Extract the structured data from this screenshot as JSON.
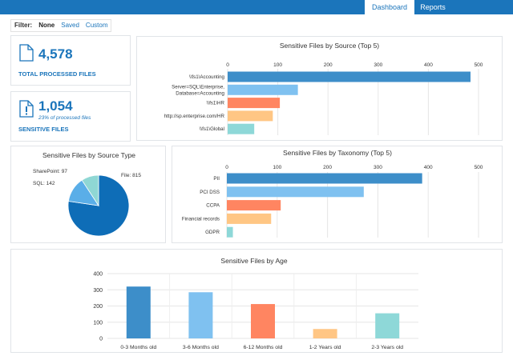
{
  "nav": {
    "tabs": [
      {
        "label": "Dashboard",
        "active": true
      },
      {
        "label": "Reports",
        "active": false
      }
    ]
  },
  "filter": {
    "label": "Filter:",
    "options": [
      {
        "label": "None",
        "selected": true
      },
      {
        "label": "Saved",
        "selected": false
      },
      {
        "label": "Custom",
        "selected": false
      }
    ]
  },
  "kpis": {
    "processed": {
      "value": "4,578",
      "label": "TOTAL PROCESSED FILES",
      "icon": "document-icon"
    },
    "sensitive": {
      "value": "1,054",
      "sub": "23% of processed files",
      "label": "SENSITIVE FILES",
      "icon": "document-alert-icon"
    }
  },
  "colors": {
    "accent": "#1b75bb",
    "bar1": "#3d8ec9",
    "bar2": "#7fc1f0",
    "bar3": "#ff8561",
    "bar4": "#ffc684",
    "bar5": "#8ed8d8",
    "pie_file": "#0e6db7",
    "pie_sql": "#5aaee8",
    "pie_sharepoint": "#8fd7d4"
  },
  "chart_data": [
    {
      "id": "source",
      "type": "bar",
      "orientation": "horizontal",
      "title": "Sensitive Files by Source  (Top 5)",
      "categories": [
        "\\\\fs1\\Accounting",
        "Server=SQL\\Enterprise,\nDatabase=Accounting",
        "\\\\fs1\\HR",
        "http://sp.enterprise.com/HR",
        "\\\\fs1\\Global"
      ],
      "values": [
        484,
        140,
        104,
        90,
        53
      ],
      "xlim": [
        0,
        500
      ],
      "ticks": [
        0,
        100,
        200,
        300,
        400,
        500
      ]
    },
    {
      "id": "type",
      "type": "pie",
      "title": "Sensitive Files by Source Type",
      "labels": [
        "File: 815",
        "SQL: 142",
        "SharePoint: 97"
      ],
      "values": [
        815,
        142,
        97
      ]
    },
    {
      "id": "taxonomy",
      "type": "bar",
      "orientation": "horizontal",
      "title": "Sensitive Files by Taxonomy  (Top 5)",
      "categories": [
        "PII",
        "PCI DSS",
        "CCPA",
        "Financial records",
        "GDPR"
      ],
      "values": [
        388,
        272,
        107,
        88,
        12
      ],
      "xlim": [
        0,
        500
      ],
      "ticks": [
        0,
        100,
        200,
        300,
        400,
        500
      ]
    },
    {
      "id": "age",
      "type": "bar",
      "orientation": "vertical",
      "title": "Sensitive Files by Age",
      "categories": [
        "0-3 Months old",
        "3-6 Months old",
        "6-12 Months old",
        "1-2 Years old",
        "2-3 Years old"
      ],
      "values": [
        320,
        285,
        212,
        58,
        155
      ],
      "ylim": [
        0,
        400
      ],
      "ticks": [
        0,
        100,
        200,
        300,
        400
      ]
    }
  ]
}
